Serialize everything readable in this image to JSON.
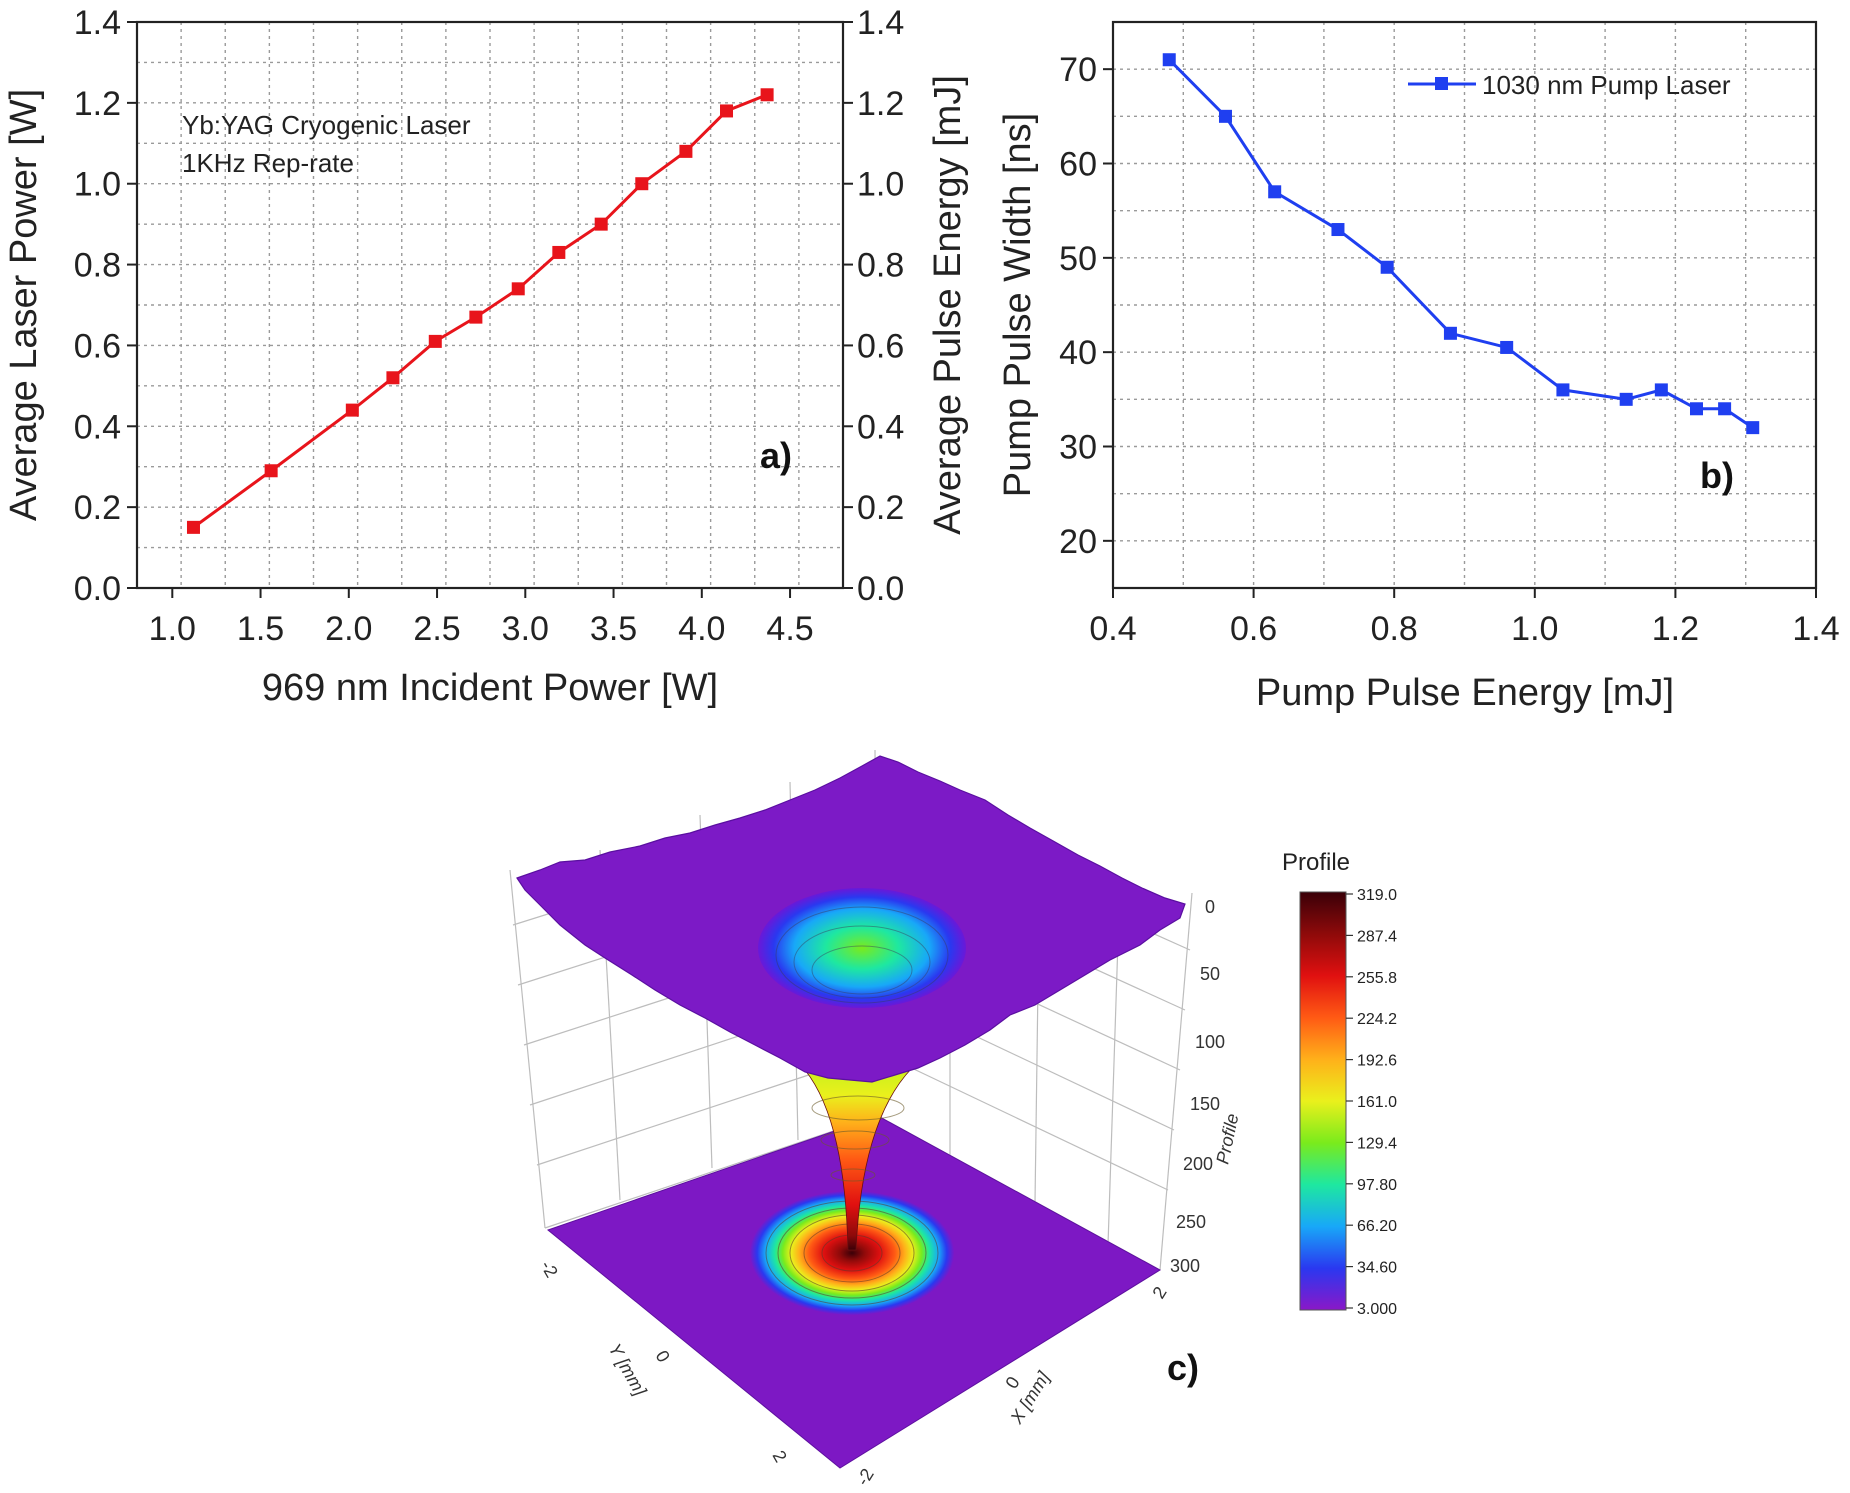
{
  "chart_data": [
    {
      "type": "line",
      "panel_label": "a)",
      "annotation": [
        "Yb:YAG Cryogenic Laser",
        "1KHz Rep-rate"
      ],
      "xlabel": "969 nm Incident Power [W]",
      "ylabel": "Average Laser Power [W]",
      "y2label": "Average Pulse Energy [mJ]",
      "xlim": [
        0.8,
        4.8
      ],
      "ylim": [
        0.0,
        1.4
      ],
      "y2lim": [
        0.0,
        1.4
      ],
      "xticks": [
        "1.0",
        "1.5",
        "2.0",
        "2.5",
        "3.0",
        "3.5",
        "4.0",
        "4.5"
      ],
      "yticks": [
        "0.0",
        "0.2",
        "0.4",
        "0.6",
        "0.8",
        "1.0",
        "1.2",
        "1.4"
      ],
      "grid": true,
      "color": "#e8141b",
      "series": [
        {
          "x": [
            1.12,
            1.56,
            2.02,
            2.25,
            2.49,
            2.72,
            2.96,
            3.19,
            3.43,
            3.66,
            3.91,
            4.14,
            4.37
          ],
          "values": [
            0.15,
            0.29,
            0.44,
            0.52,
            0.61,
            0.67,
            0.74,
            0.83,
            0.9,
            1.0,
            1.08,
            1.18,
            1.22
          ]
        }
      ]
    },
    {
      "type": "line",
      "panel_label": "b)",
      "xlabel": "Pump Pulse Energy [mJ]",
      "ylabel": "Pump Pulse Width [ns]",
      "xlim": [
        0.4,
        1.4
      ],
      "ylim": [
        15,
        75
      ],
      "xticks": [
        "0.4",
        "0.6",
        "0.8",
        "1.0",
        "1.2",
        "1.4"
      ],
      "yticks": [
        "20",
        "30",
        "40",
        "50",
        "60",
        "70"
      ],
      "grid": true,
      "legend_position": "top-right",
      "color": "#1f3ff0",
      "series": [
        {
          "name": "1030 nm Pump Laser",
          "x": [
            0.48,
            0.56,
            0.63,
            0.72,
            0.79,
            0.88,
            0.96,
            1.04,
            1.13,
            1.18,
            1.23,
            1.27,
            1.31
          ],
          "values": [
            71,
            65,
            57,
            53,
            49,
            42,
            40.5,
            36,
            35,
            36,
            34,
            34,
            32
          ]
        }
      ]
    },
    {
      "type": "surface",
      "panel_label": "c)",
      "xlabel": "X [mm]",
      "ylabel": "Y [mm]",
      "zlabel": "Profile",
      "xticks": [
        "-2",
        "0",
        "2"
      ],
      "yticks": [
        "-2",
        "0",
        "2"
      ],
      "zticks": [
        "0",
        "50",
        "100",
        "150",
        "200",
        "250",
        "300"
      ],
      "colorbar_title": "Profile",
      "colorbar_ticks": [
        "319.0",
        "287.4",
        "255.8",
        "224.2",
        "192.6",
        "161.0",
        "129.4",
        "97.80",
        "66.20",
        "34.60",
        "3.000"
      ],
      "colorbar_colors": [
        "#3a0008",
        "#8e0a0a",
        "#e01010",
        "#ff5a14",
        "#ffb01a",
        "#eaf01c",
        "#7aeb1c",
        "#1ee8a0",
        "#18a8f8",
        "#2a38f0",
        "#8a18c8"
      ]
    }
  ]
}
